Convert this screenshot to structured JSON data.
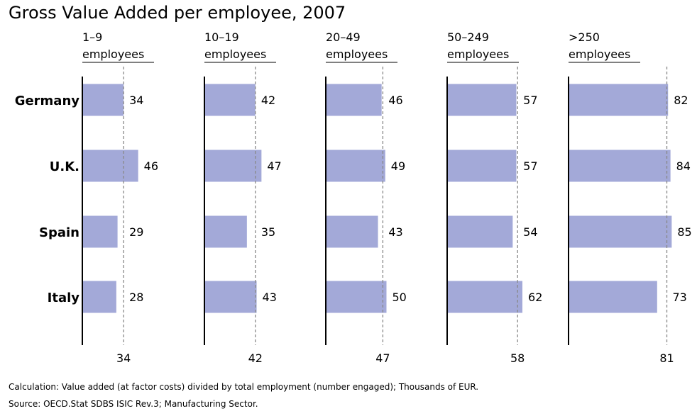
{
  "chart_data": {
    "type": "bar",
    "orientation": "horizontal",
    "title": "Gross Value Added per employee, 2007",
    "categories": [
      "Germany",
      "U.K.",
      "Spain",
      "Italy"
    ],
    "panels": [
      {
        "label_line1": "1–9",
        "label_line2": "employees",
        "values": [
          34,
          46,
          29,
          28
        ],
        "reference": 34
      },
      {
        "label_line1": "10–19",
        "label_line2": "employees",
        "values": [
          42,
          47,
          35,
          43
        ],
        "reference": 42
      },
      {
        "label_line1": "20–49",
        "label_line2": "employees",
        "values": [
          46,
          49,
          43,
          50
        ],
        "reference": 47
      },
      {
        "label_line1": "50–249",
        "label_line2": "employees",
        "values": [
          57,
          57,
          54,
          62
        ],
        "reference": 58
      },
      {
        "label_line1": ">250",
        "label_line2": "employees",
        "values": [
          82,
          84,
          85,
          73
        ],
        "reference": 81
      }
    ],
    "bar_color": "#a3a9d8",
    "reference_line_color": "#888888",
    "xlim": [
      0,
      100
    ],
    "legend": "none",
    "grid": false
  },
  "footnotes": {
    "calculation": "Calculation: Value added (at factor costs) divided by total employment (number engaged); Thousands of EUR.",
    "source": "Source: OECD.Stat SDBS ISIC Rev.3; Manufacturing Sector."
  }
}
